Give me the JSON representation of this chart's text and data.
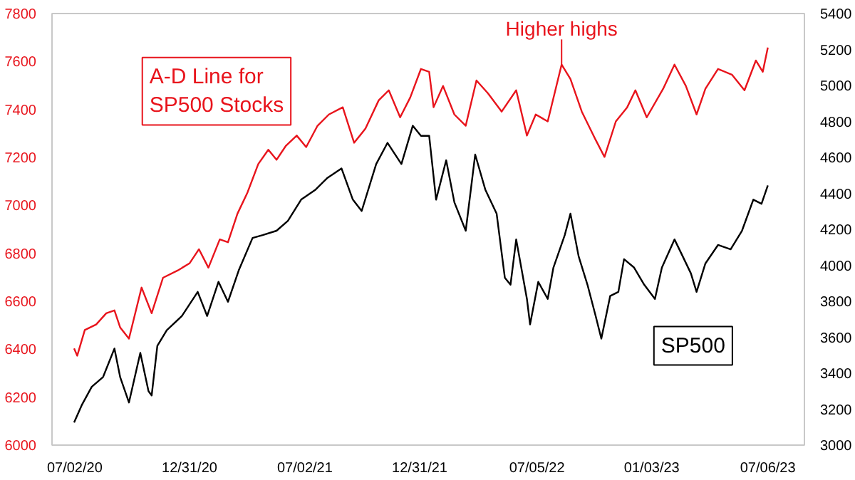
{
  "chart_data": {
    "type": "line",
    "annotations": [
      {
        "text": "Higher highs",
        "x": "2022-08-13",
        "y": 7587
      }
    ],
    "xlim": [
      "2020-05-27",
      "2023-09-02"
    ],
    "xticks": [
      {
        "value": "2020-07-02",
        "label": "07/02/20"
      },
      {
        "value": "2020-12-31",
        "label": "12/31/20"
      },
      {
        "value": "2021-07-02",
        "label": "07/02/21"
      },
      {
        "value": "2021-12-31",
        "label": "12/31/21"
      },
      {
        "value": "2022-07-05",
        "label": "07/05/22"
      },
      {
        "value": "2023-01-03",
        "label": "01/03/23"
      },
      {
        "value": "2023-07-06",
        "label": "07/06/23"
      }
    ],
    "ylim": [
      6000,
      7800
    ],
    "yticks": [
      6000,
      6200,
      6400,
      6600,
      6800,
      7000,
      7200,
      7400,
      7600,
      7800
    ],
    "y2lim": [
      3000,
      5400
    ],
    "y2ticks": [
      3000,
      3200,
      3400,
      3600,
      3800,
      4000,
      4200,
      4400,
      4600,
      4800,
      5000,
      5200,
      5400
    ],
    "grid": false,
    "series": [
      {
        "name": "A-D Line for\nSP500 Stocks",
        "color": "#e8141c",
        "x": [
          "2020-07-01",
          "2020-07-06",
          "2020-07-18",
          "2020-08-05",
          "2020-08-21",
          "2020-09-03",
          "2020-09-12",
          "2020-09-26",
          "2020-10-16",
          "2020-11-01",
          "2020-11-19",
          "2020-12-12",
          "2020-12-31",
          "2021-01-15",
          "2021-01-30",
          "2021-02-17",
          "2021-03-02",
          "2021-03-17",
          "2021-04-02",
          "2021-04-19",
          "2021-05-05",
          "2021-05-18",
          "2021-06-02",
          "2021-06-19",
          "2021-07-04",
          "2021-07-22",
          "2021-08-09",
          "2021-08-31",
          "2021-09-18",
          "2021-10-06",
          "2021-10-27",
          "2021-11-12",
          "2021-11-30",
          "2021-12-16",
          "2022-01-02",
          "2022-01-15",
          "2022-01-22",
          "2022-02-06",
          "2022-02-24",
          "2022-03-14",
          "2022-03-31",
          "2022-04-18",
          "2022-05-10",
          "2022-06-02",
          "2022-06-19",
          "2022-07-03",
          "2022-07-22",
          "2022-08-13",
          "2022-08-27",
          "2022-09-14",
          "2022-10-06",
          "2022-10-20",
          "2022-11-07",
          "2022-11-25",
          "2022-12-08",
          "2022-12-26",
          "2023-01-21",
          "2023-02-08",
          "2023-02-26",
          "2023-03-15",
          "2023-03-29",
          "2023-04-18",
          "2023-05-10",
          "2023-05-30",
          "2023-06-17",
          "2023-06-28",
          "2023-07-06"
        ],
        "values": [
          6403,
          6373,
          6480,
          6503,
          6550,
          6562,
          6491,
          6444,
          6657,
          6550,
          6698,
          6728,
          6758,
          6817,
          6740,
          6858,
          6846,
          6965,
          7054,
          7172,
          7232,
          7190,
          7249,
          7291,
          7243,
          7332,
          7379,
          7409,
          7261,
          7320,
          7438,
          7480,
          7367,
          7450,
          7569,
          7557,
          7409,
          7498,
          7379,
          7332,
          7521,
          7468,
          7391,
          7480,
          7291,
          7379,
          7350,
          7587,
          7527,
          7391,
          7273,
          7202,
          7350,
          7409,
          7480,
          7367,
          7486,
          7587,
          7498,
          7379,
          7486,
          7569,
          7545,
          7480,
          7604,
          7557,
          7658
        ]
      },
      {
        "name": "SP500",
        "color": "#000000",
        "axis": "y2",
        "x": [
          "2020-07-01",
          "2020-07-13",
          "2020-07-29",
          "2020-08-16",
          "2020-09-03",
          "2020-09-12",
          "2020-09-26",
          "2020-10-14",
          "2020-10-27",
          "2020-11-01",
          "2020-11-10",
          "2020-11-25",
          "2020-12-19",
          "2021-01-13",
          "2021-01-28",
          "2021-02-15",
          "2021-03-02",
          "2021-03-19",
          "2021-04-10",
          "2021-04-26",
          "2021-05-18",
          "2021-06-05",
          "2021-06-26",
          "2021-07-19",
          "2021-08-06",
          "2021-08-29",
          "2021-09-16",
          "2021-09-30",
          "2021-10-23",
          "2021-11-10",
          "2021-12-02",
          "2021-12-20",
          "2022-01-02",
          "2022-01-15",
          "2022-01-26",
          "2022-02-11",
          "2022-02-24",
          "2022-03-14",
          "2022-03-29",
          "2022-04-14",
          "2022-05-02",
          "2022-05-15",
          "2022-05-24",
          "2022-06-02",
          "2022-06-19",
          "2022-06-24",
          "2022-07-07",
          "2022-07-22",
          "2022-07-31",
          "2022-08-18",
          "2022-08-27",
          "2022-09-09",
          "2022-09-23",
          "2022-10-06",
          "2022-10-15",
          "2022-10-29",
          "2022-11-11",
          "2022-11-20",
          "2022-12-06",
          "2022-12-22",
          "2023-01-08",
          "2023-01-19",
          "2023-02-08",
          "2023-02-21",
          "2023-03-06",
          "2023-03-15",
          "2023-03-29",
          "2023-04-18",
          "2023-05-08",
          "2023-05-26",
          "2023-06-13",
          "2023-06-26",
          "2023-07-06"
        ],
        "values": [
          3126,
          3221,
          3324,
          3379,
          3537,
          3379,
          3237,
          3513,
          3300,
          3276,
          3552,
          3639,
          3718,
          3852,
          3718,
          3908,
          3797,
          3971,
          4152,
          4168,
          4192,
          4247,
          4365,
          4421,
          4484,
          4539,
          4365,
          4302,
          4563,
          4681,
          4563,
          4776,
          4720,
          4720,
          4365,
          4584,
          4350,
          4192,
          4616,
          4421,
          4287,
          3931,
          3892,
          4144,
          3813,
          3671,
          3908,
          3813,
          3987,
          4168,
          4287,
          4050,
          3892,
          3718,
          3592,
          3829,
          3852,
          4034,
          3987,
          3892,
          3813,
          3987,
          4144,
          4050,
          3955,
          3852,
          4010,
          4113,
          4089,
          4192,
          4365,
          4342,
          4444
        ]
      }
    ]
  }
}
